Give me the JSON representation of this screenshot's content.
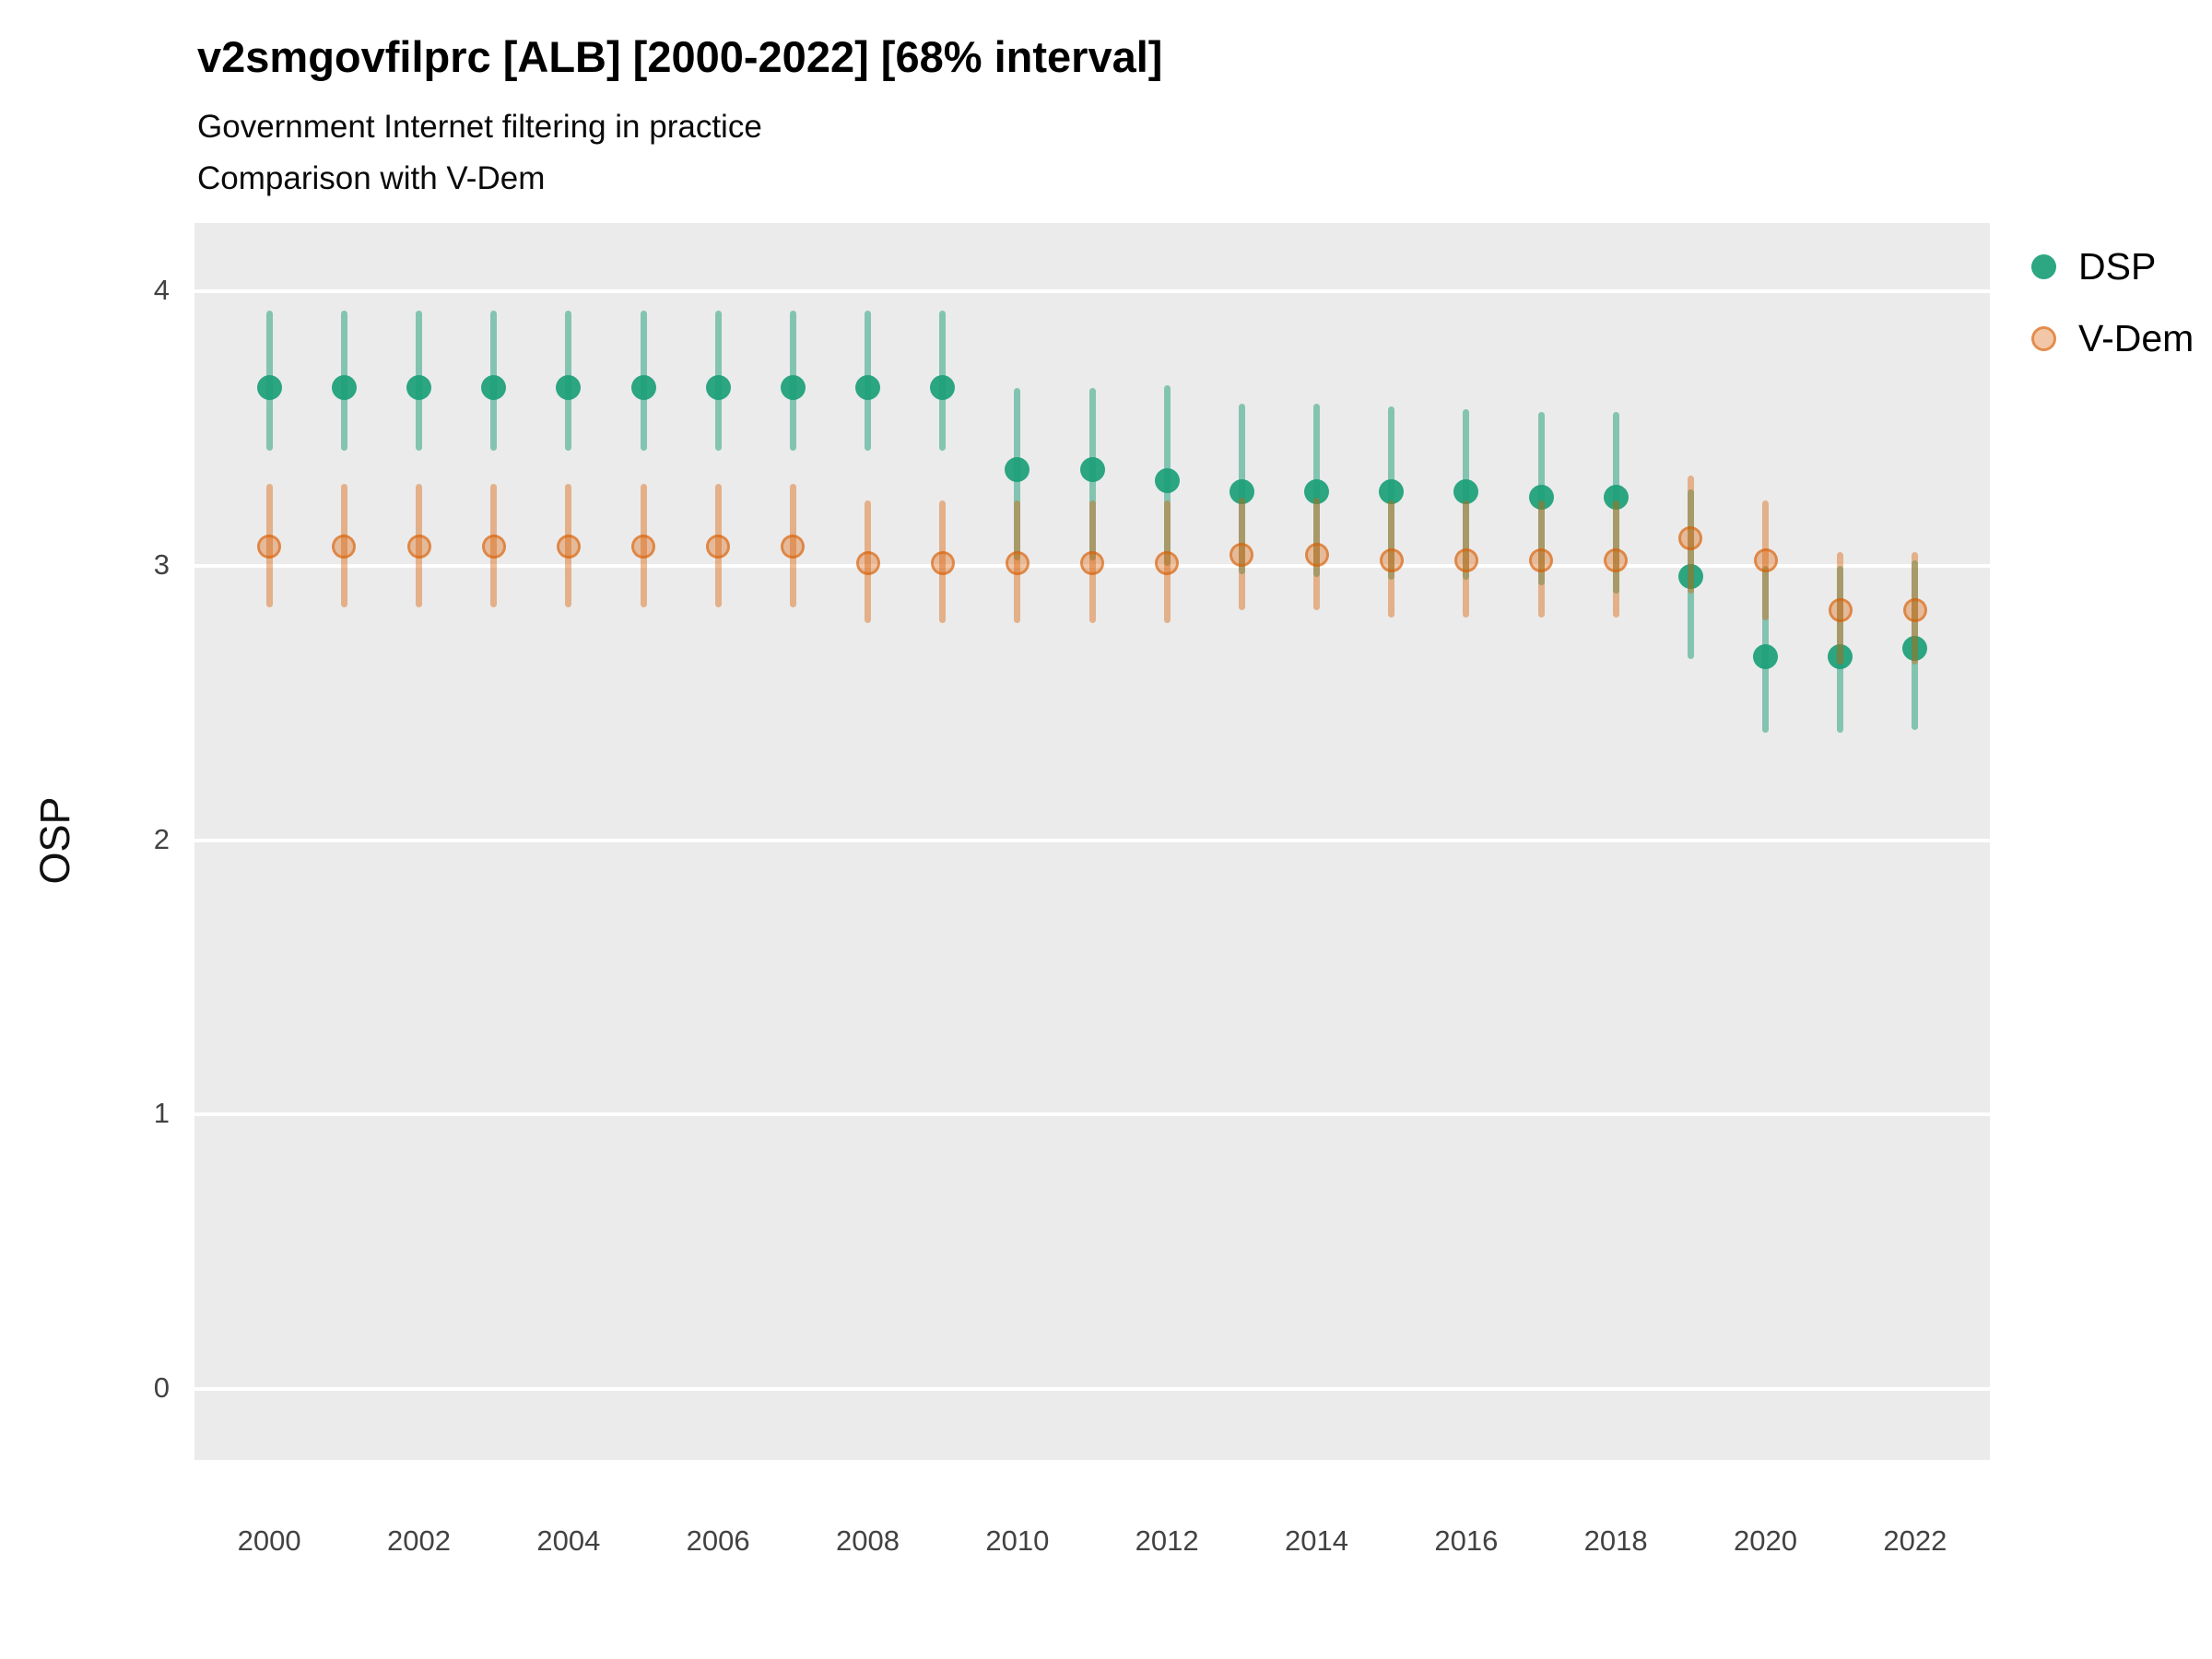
{
  "header": {
    "title": "v2smgovfilprc [ALB] [2000-2022] [68% interval]",
    "subtitle1": "Government Internet filtering in practice",
    "subtitle2": "Comparison with V-Dem"
  },
  "axes": {
    "y_label": "OSP",
    "y_ticks": [
      0,
      1,
      2,
      3,
      4
    ],
    "x_ticks": [
      2000,
      2002,
      2004,
      2006,
      2008,
      2010,
      2012,
      2014,
      2016,
      2018,
      2020,
      2022
    ]
  },
  "legend": [
    {
      "label": "DSP",
      "color": "#1b9e77"
    },
    {
      "label": "V-Dem",
      "color": "#d95f02"
    }
  ],
  "chart_data": {
    "type": "scatter",
    "subtype": "pointrange (point with 68% credible interval)",
    "title": "v2smgovfilprc [ALB] [2000-2022] [68% interval]",
    "xlabel": "",
    "ylabel": "OSP",
    "xlim": [
      1999,
      2023
    ],
    "ylim": [
      -0.26,
      4.25
    ],
    "grid": "horizontal-major-only",
    "legend_position": "right-top",
    "plot_background": "#EBEBEB",
    "x": [
      2000,
      2001,
      2002,
      2003,
      2004,
      2005,
      2006,
      2007,
      2008,
      2009,
      2010,
      2011,
      2012,
      2013,
      2014,
      2015,
      2016,
      2017,
      2018,
      2019,
      2020,
      2021,
      2022
    ],
    "series": [
      {
        "name": "DSP",
        "point_color": "rgba(27,158,119,0.92)",
        "line_color": "rgba(27,158,119,0.5)",
        "values": [
          3.65,
          3.65,
          3.65,
          3.65,
          3.65,
          3.65,
          3.65,
          3.65,
          3.65,
          3.65,
          3.35,
          3.35,
          3.31,
          3.27,
          3.27,
          3.27,
          3.27,
          3.25,
          3.25,
          2.96,
          2.67,
          2.67,
          2.7
        ],
        "lower": [
          3.42,
          3.42,
          3.42,
          3.42,
          3.42,
          3.42,
          3.42,
          3.42,
          3.42,
          3.42,
          3.02,
          3.02,
          3.0,
          2.97,
          2.96,
          2.95,
          2.95,
          2.93,
          2.9,
          2.66,
          2.39,
          2.39,
          2.4
        ],
        "upper": [
          3.93,
          3.93,
          3.93,
          3.93,
          3.93,
          3.93,
          3.93,
          3.93,
          3.93,
          3.93,
          3.65,
          3.65,
          3.66,
          3.59,
          3.59,
          3.58,
          3.57,
          3.56,
          3.56,
          3.28,
          3.0,
          3.0,
          3.02
        ]
      },
      {
        "name": "V-Dem",
        "point_color": "rgba(217,95,2,0.35)",
        "point_border": "rgba(217,95,2,0.55)",
        "line_color": "rgba(217,95,2,0.42)",
        "values": [
          3.07,
          3.07,
          3.07,
          3.07,
          3.07,
          3.07,
          3.07,
          3.07,
          3.01,
          3.01,
          3.01,
          3.01,
          3.01,
          3.04,
          3.04,
          3.02,
          3.02,
          3.02,
          3.02,
          3.1,
          3.02,
          2.84,
          2.84
        ],
        "lower": [
          2.85,
          2.85,
          2.85,
          2.85,
          2.85,
          2.85,
          2.85,
          2.85,
          2.79,
          2.79,
          2.79,
          2.79,
          2.79,
          2.84,
          2.84,
          2.81,
          2.81,
          2.81,
          2.81,
          2.9,
          2.8,
          2.64,
          2.64
        ],
        "upper": [
          3.3,
          3.3,
          3.3,
          3.3,
          3.3,
          3.3,
          3.3,
          3.3,
          3.24,
          3.24,
          3.24,
          3.24,
          3.24,
          3.25,
          3.25,
          3.24,
          3.24,
          3.24,
          3.24,
          3.33,
          3.24,
          3.05,
          3.05
        ]
      }
    ]
  }
}
